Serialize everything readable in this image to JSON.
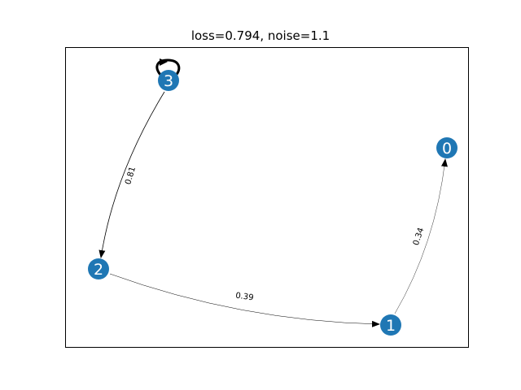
{
  "title": "loss=0.794, noise=1.1",
  "node_color": "#1f77b4",
  "nodes": [
    {
      "id": "0",
      "label": "0"
    },
    {
      "id": "1",
      "label": "1"
    },
    {
      "id": "2",
      "label": "2"
    },
    {
      "id": "3",
      "label": "3"
    }
  ],
  "edges": [
    {
      "from": "3",
      "to": "2",
      "label": "0.81",
      "weight": 0.81
    },
    {
      "from": "2",
      "to": "1",
      "label": "0.39",
      "weight": 0.39
    },
    {
      "from": "1",
      "to": "0",
      "label": "0.34",
      "weight": 0.34
    },
    {
      "from": "3",
      "to": "3",
      "label": "",
      "weight": 1.0
    }
  ]
}
